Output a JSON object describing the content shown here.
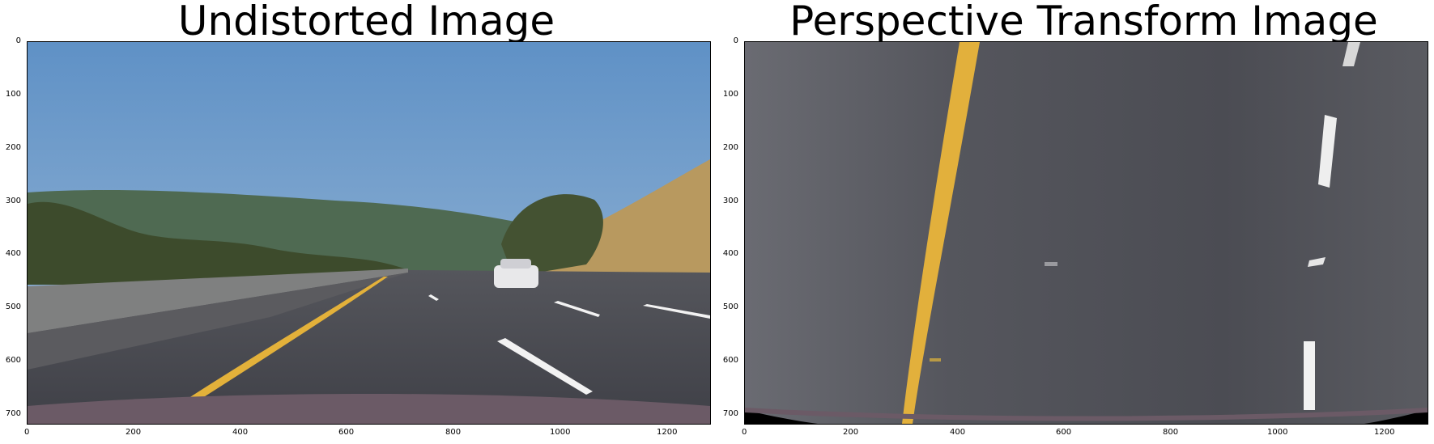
{
  "panels": [
    {
      "title": "Undistorted Image",
      "image": "undistorted-road-scene",
      "x_ticks": [
        "0",
        "200",
        "400",
        "600",
        "800",
        "1000",
        "1200"
      ],
      "y_ticks": [
        "0",
        "100",
        "200",
        "300",
        "400",
        "500",
        "600",
        "700"
      ]
    },
    {
      "title": "Perspective Transform Image",
      "image": "birds-eye-lane-view",
      "x_ticks": [
        "0",
        "200",
        "400",
        "600",
        "800",
        "1000",
        "1200"
      ],
      "y_ticks": [
        "0",
        "100",
        "200",
        "300",
        "400",
        "500",
        "600",
        "700"
      ]
    }
  ],
  "colors": {
    "sky": "#6f9bc7",
    "road": "#4a4b52",
    "lane_yellow": "#e3b13a",
    "lane_white": "#f2f2f2",
    "hill": "#b79a63",
    "trees": "#3b4a2a"
  }
}
